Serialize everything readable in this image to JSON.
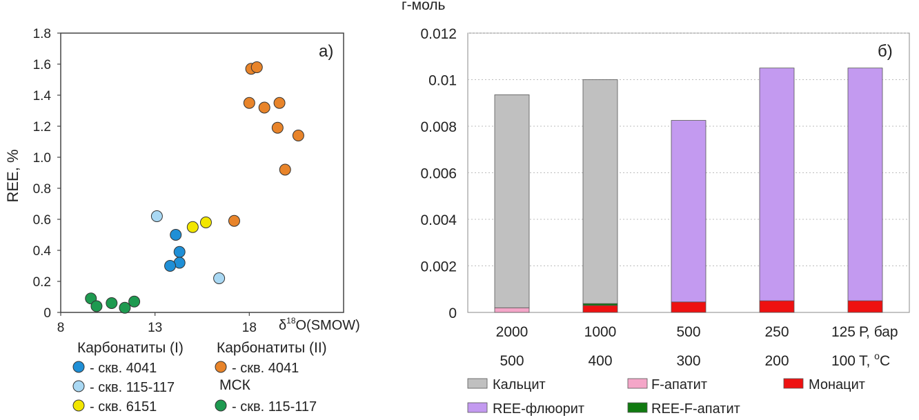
{
  "chart_data": [
    {
      "type": "scatter",
      "panel_label": "а)",
      "ylabel": "REE, %",
      "xlabel_prefix": "δ",
      "xlabel_sup": "18",
      "xlabel_rest": "O(SMOW)",
      "xlim": [
        8,
        23
      ],
      "ylim": [
        0,
        1.8
      ],
      "x_ticks": [
        8,
        13,
        18
      ],
      "y_ticks": [
        0,
        0.2,
        0.4,
        0.6,
        0.8,
        1.0,
        1.2,
        1.4,
        1.6,
        1.8
      ],
      "y_tick_labels": [
        "0",
        "0.2",
        "0.4",
        "0.6",
        "0.8",
        "1.0",
        "1.2",
        "1.4",
        "1.6",
        "1.8"
      ],
      "series": [
        {
          "name": "- скв. 4041",
          "group": "Карбонатиты (I)",
          "color": "#1f8fd6",
          "points": [
            [
              14.1,
              0.5
            ],
            [
              14.3,
              0.39
            ],
            [
              14.3,
              0.32
            ],
            [
              13.8,
              0.3
            ]
          ]
        },
        {
          "name": "- скв. 115-117",
          "group": "Карбонатиты (I)",
          "color": "#a9d8f3",
          "points": [
            [
              13.1,
              0.62
            ],
            [
              16.4,
              0.22
            ]
          ]
        },
        {
          "name": "- скв. 6151",
          "group": "Карбонатиты (I)",
          "color": "#f2e600",
          "points": [
            [
              15.0,
              0.55
            ],
            [
              15.7,
              0.58
            ]
          ]
        },
        {
          "name": "- скв. 4041",
          "group": "Карбонатиты (II)",
          "color": "#e8842a",
          "points": [
            [
              18.1,
              1.57
            ],
            [
              18.4,
              1.58
            ],
            [
              18.0,
              1.35
            ],
            [
              18.8,
              1.32
            ],
            [
              19.6,
              1.35
            ],
            [
              19.5,
              1.19
            ],
            [
              20.6,
              1.14
            ],
            [
              19.9,
              0.92
            ],
            [
              17.2,
              0.59
            ]
          ]
        },
        {
          "name": "- скв. 115-117",
          "group": "МСК",
          "color": "#1e9a50",
          "points": [
            [
              9.6,
              0.09
            ],
            [
              9.9,
              0.04
            ],
            [
              10.7,
              0.06
            ],
            [
              11.4,
              0.03
            ],
            [
              11.9,
              0.07
            ]
          ]
        }
      ],
      "legend_groups": [
        "Карбонатиты (I)",
        "Карбонатиты (II)",
        "МСК"
      ]
    },
    {
      "type": "bar",
      "stacked": true,
      "panel_label": "б)",
      "ylabel": "г-моль",
      "ylim": [
        0,
        0.012
      ],
      "y_ticks": [
        0,
        0.002,
        0.004,
        0.006,
        0.008,
        0.01,
        0.012
      ],
      "y_tick_labels": [
        "0",
        "0.002",
        "0.004",
        "0.006",
        "0.008",
        "0.01",
        "0.012"
      ],
      "categories_P": [
        "2000",
        "1000",
        "500",
        "250",
        "125"
      ],
      "categories_T": [
        "500",
        "400",
        "300",
        "200",
        "100"
      ],
      "p_unit": "Р, бар",
      "t_unit_prefix": "Т, ",
      "t_unit_sup": "о",
      "t_unit_suffix": "С",
      "series": [
        {
          "name": "Монацит",
          "color": "#ee1111",
          "values": [
            0,
            0.0003,
            0.00045,
            0.0005,
            0.0005
          ]
        },
        {
          "name": "REE-F-апатит",
          "color": "#107a10",
          "values": [
            0,
            8e-05,
            0,
            0,
            0
          ]
        },
        {
          "name": "F-апатит",
          "color": "#f4a6c8",
          "values": [
            0.0002,
            0,
            0,
            0,
            0
          ]
        },
        {
          "name": "Кальцит",
          "color": "#c0c0c0",
          "values": [
            0.00915,
            0.00962,
            0,
            0,
            0
          ]
        },
        {
          "name": "REE-флюорит",
          "color": "#c39af0",
          "values": [
            0,
            0,
            0.0078,
            0.01,
            0.01
          ]
        }
      ],
      "legend_order": [
        "Кальцит",
        "F-апатит",
        "Монацит",
        "REE-флюорит",
        "REE-F-апатит"
      ]
    }
  ]
}
